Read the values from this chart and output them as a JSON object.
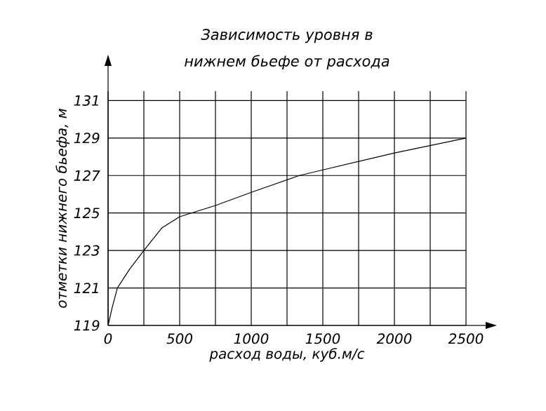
{
  "chart_data": {
    "type": "line",
    "title": "Зависимость уровня в нижнем бьефе от расхода",
    "xlabel": "расход воды, куб.м/с",
    "ylabel": "отметки нижнего бьефа, м",
    "x": [
      0,
      30,
      65,
      150,
      250,
      375,
      500,
      750,
      1000,
      1336,
      1500,
      2000,
      2500
    ],
    "series": [
      {
        "color": "#000000",
        "values": [
          119,
          120,
          121,
          122,
          123,
          124.2,
          124.8,
          125.4,
          126.1,
          127,
          127.3,
          128.2,
          129
        ]
      }
    ],
    "xlim": [
      0,
      2500
    ],
    "ylim": [
      119,
      131.5
    ],
    "xticks": [
      0,
      {
        "value": 250,
        "label": null
      },
      500,
      {
        "value": 750,
        "label": null
      },
      1000,
      {
        "value": 1250,
        "label": null
      },
      1500,
      {
        "value": 1750,
        "label": null
      },
      2000,
      {
        "value": 2250,
        "label": null
      },
      2500
    ],
    "yticks": [
      119,
      121,
      123,
      125,
      127,
      129,
      131
    ],
    "grid": true,
    "legend": false,
    "marker": "none",
    "line_style": "solid"
  }
}
